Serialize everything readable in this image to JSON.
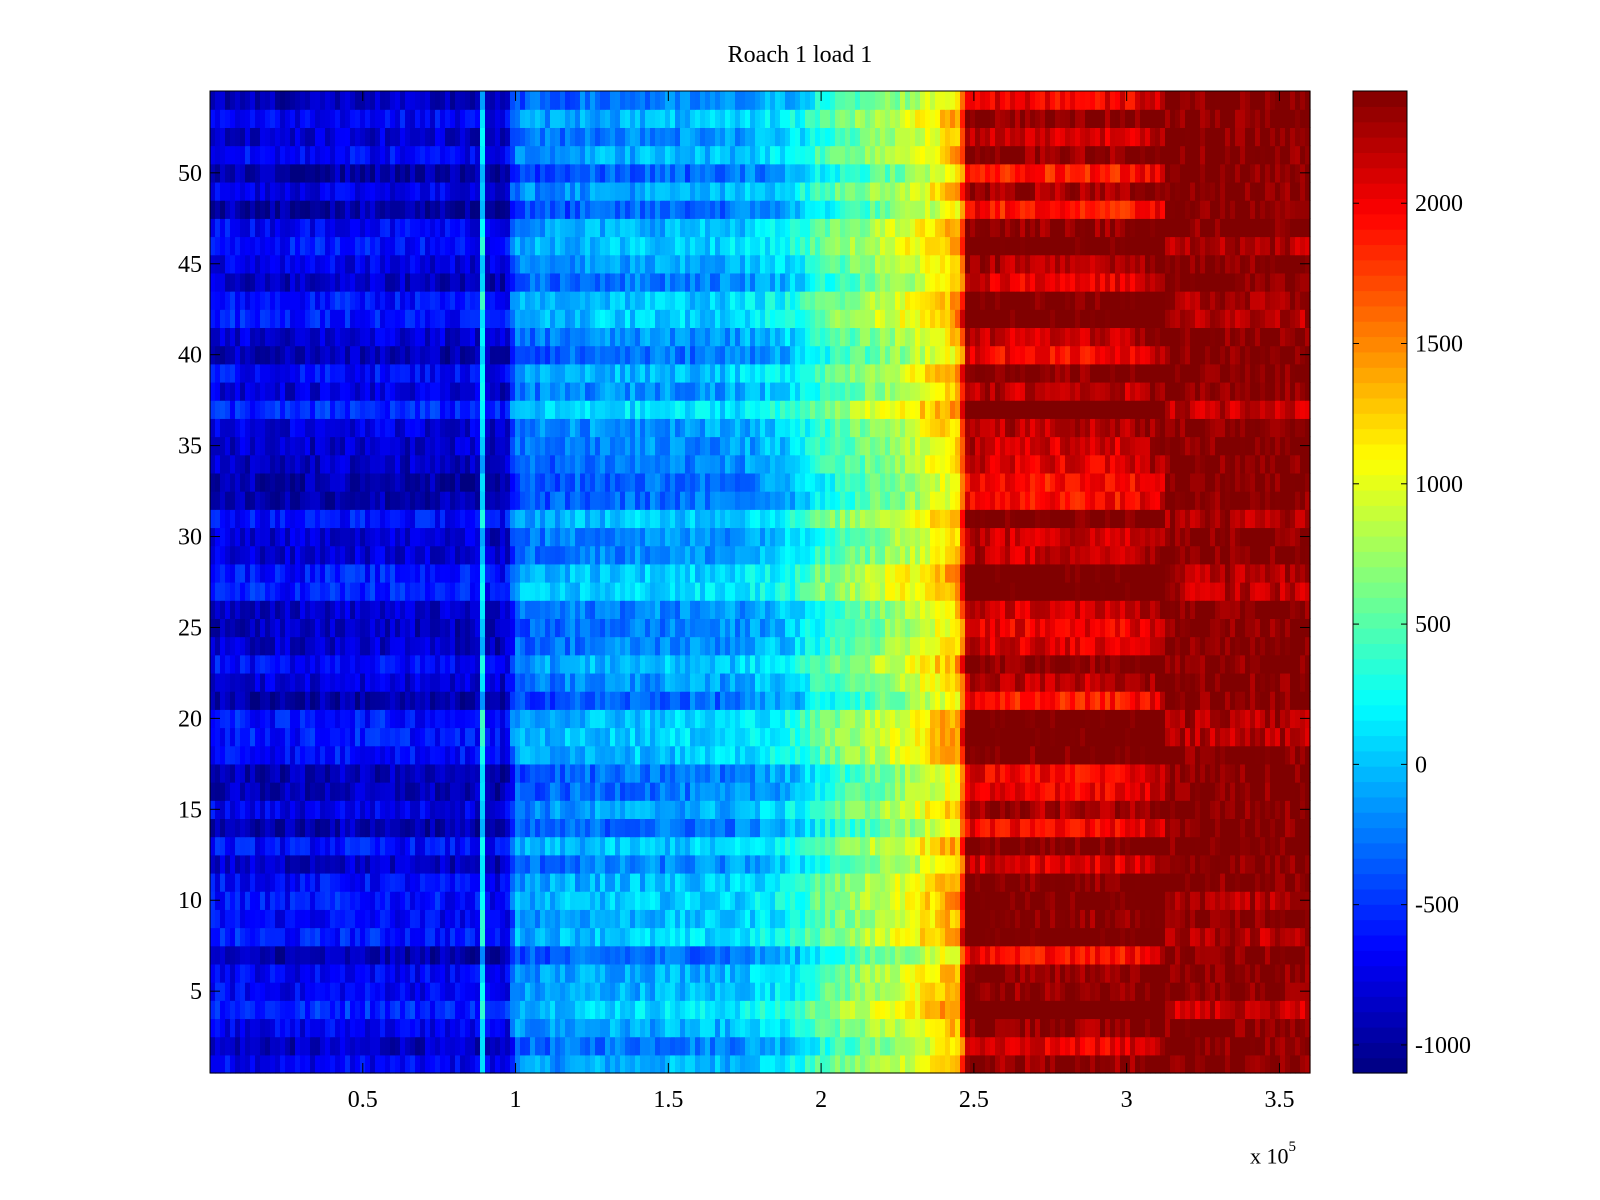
{
  "chart_data": {
    "type": "heatmap",
    "title": "Roach 1 load 1",
    "xlabel": "",
    "ylabel": "",
    "xlim": [
      0,
      360000
    ],
    "ylim": [
      0.5,
      54.5
    ],
    "x_ticks": [
      50000,
      100000,
      150000,
      200000,
      250000,
      300000,
      350000
    ],
    "x_tick_labels": [
      "0.5",
      "1",
      "1.5",
      "2",
      "2.5",
      "3",
      "3.5"
    ],
    "x_multiplier_label": "x 10",
    "x_multiplier_exponent": "5",
    "y_ticks": [
      5,
      10,
      15,
      20,
      25,
      30,
      35,
      40,
      45,
      50
    ],
    "y_tick_labels": [
      "5",
      "10",
      "15",
      "20",
      "25",
      "30",
      "35",
      "40",
      "45",
      "50"
    ],
    "rows": 54,
    "colorbar": {
      "colormap": "jet",
      "clim": [
        -1100,
        2400
      ],
      "ticks": [
        -1000,
        -500,
        0,
        500,
        1000,
        1500,
        2000
      ],
      "tick_labels": [
        "-1000",
        "-500",
        "0",
        "500",
        "1000",
        "1500",
        "2000"
      ]
    },
    "column_profile": {
      "x": [
        0,
        30000,
        40000,
        88000,
        89000,
        90000,
        97000,
        100000,
        130000,
        170000,
        190000,
        200000,
        230000,
        245000,
        248000,
        260000,
        300000,
        312000,
        360000
      ],
      "mean_value": [
        -750,
        -800,
        -750,
        -800,
        300,
        -800,
        -850,
        -250,
        -150,
        -100,
        100,
        400,
        900,
        1300,
        2300,
        2200,
        2200,
        2400,
        2400
      ]
    }
  }
}
